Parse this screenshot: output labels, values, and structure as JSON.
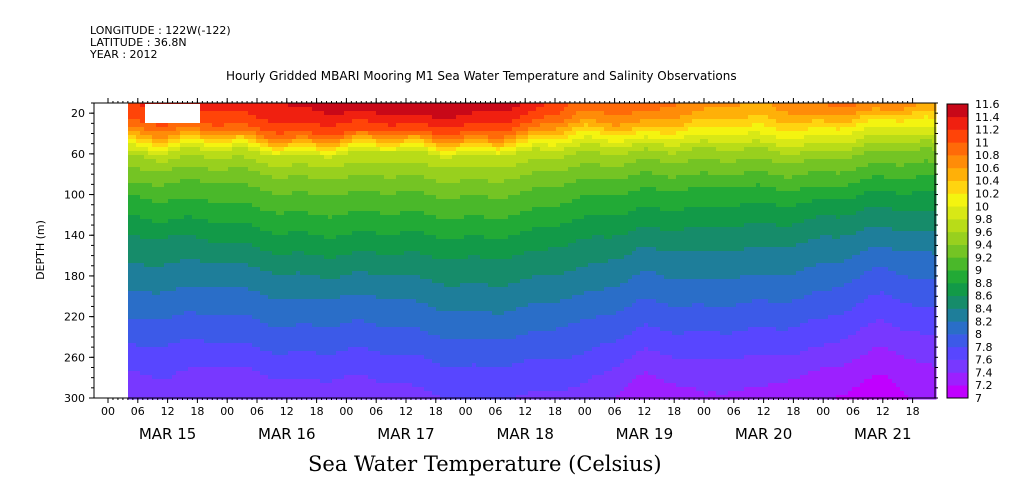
{
  "header": {
    "longitude": "LONGITUDE : 122W(-122)",
    "latitude": "LATITUDE : 36.8N",
    "year": "YEAR : 2012"
  },
  "chart_data": {
    "type": "heatmap",
    "title": "Hourly Gridded MBARI Mooring M1 Sea Water Temperature and Salinity Observations",
    "subtitle": "Sea Water Temperature (Celsius)",
    "ylabel": "DEPTH (m)",
    "ylim": [
      300,
      10
    ],
    "y_ticks": [
      20,
      60,
      100,
      140,
      180,
      220,
      260,
      300
    ],
    "hour_ticks": [
      "00",
      "06",
      "12",
      "18",
      "00",
      "06",
      "12",
      "18",
      "00",
      "06",
      "12",
      "18",
      "00",
      "06",
      "12",
      "18",
      "00",
      "06",
      "12",
      "18",
      "00",
      "06",
      "12",
      "18",
      "00",
      "06",
      "12",
      "18"
    ],
    "x_dates": [
      "MAR 15",
      "MAR 16",
      "MAR 17",
      "MAR 18",
      "MAR 19",
      "MAR 20",
      "MAR 21"
    ],
    "colorbar": {
      "levels": [
        7,
        7.2,
        7.4,
        7.6,
        7.8,
        8,
        8.2,
        8.4,
        8.6,
        8.8,
        9,
        9.2,
        9.4,
        9.6,
        9.8,
        10,
        10.2,
        10.4,
        10.6,
        10.8,
        11,
        11.2,
        11.4,
        11.6
      ],
      "colors": [
        "#c000ff",
        "#9c20ff",
        "#7838ff",
        "#5846ff",
        "#3c5ae8",
        "#2a6ec8",
        "#1e7e9a",
        "#168c6a",
        "#129a48",
        "#22aa36",
        "#4ab82a",
        "#74c424",
        "#98d01e",
        "#b8dc18",
        "#d8e816",
        "#f4f410",
        "#ffd410",
        "#ffb008",
        "#ff8c08",
        "#ff6a08",
        "#ff4408",
        "#f02010",
        "#c80818",
        "#980010"
      ]
    },
    "profile_depths": [
      10,
      20,
      30,
      40,
      50,
      60,
      80,
      100,
      120,
      140,
      160,
      180,
      200,
      220,
      240,
      260,
      280,
      300
    ],
    "profiles": [
      {
        "date": "MAR 15 06",
        "temps": [
          11.2,
          11.1,
          10.9,
          10.5,
          10.0,
          9.6,
          9.3,
          9.0,
          8.8,
          8.6,
          8.45,
          8.3,
          8.15,
          8.0,
          7.85,
          7.7,
          7.55,
          7.45
        ]
      },
      {
        "date": "MAR 15 12",
        "temps": [
          11.3,
          11.2,
          11.0,
          10.7,
          10.2,
          9.7,
          9.3,
          9.05,
          8.85,
          8.6,
          8.45,
          8.3,
          8.15,
          8.0,
          7.85,
          7.7,
          7.6,
          7.5
        ]
      },
      {
        "date": "MAR 16 00",
        "temps": [
          11.3,
          11.2,
          11.1,
          10.8,
          10.2,
          9.7,
          9.35,
          9.1,
          8.9,
          8.7,
          8.5,
          8.3,
          8.15,
          8.0,
          7.85,
          7.7,
          7.5,
          7.4
        ]
      },
      {
        "date": "MAR 16 12",
        "temps": [
          11.4,
          11.3,
          11.15,
          10.9,
          10.3,
          9.75,
          9.4,
          9.15,
          8.95,
          8.75,
          8.55,
          8.35,
          8.2,
          8.05,
          7.9,
          7.75,
          7.6,
          7.5
        ]
      },
      {
        "date": "MAR 17 00",
        "temps": [
          11.5,
          11.4,
          11.2,
          11.0,
          10.4,
          9.8,
          9.45,
          9.2,
          9.0,
          8.8,
          8.6,
          8.4,
          8.2,
          8.05,
          7.9,
          7.75,
          7.6,
          7.5
        ]
      },
      {
        "date": "MAR 17 12",
        "temps": [
          11.65,
          11.5,
          11.3,
          11.0,
          10.4,
          9.8,
          9.45,
          9.2,
          9.0,
          8.8,
          8.6,
          8.42,
          8.25,
          8.1,
          7.95,
          7.8,
          7.65,
          7.55
        ]
      },
      {
        "date": "MAR 18 00",
        "temps": [
          11.5,
          11.4,
          11.2,
          10.9,
          10.3,
          9.75,
          9.45,
          9.2,
          9.0,
          8.8,
          8.6,
          8.45,
          8.3,
          8.15,
          8.0,
          7.85,
          7.7,
          7.6
        ]
      },
      {
        "date": "MAR 18 12",
        "temps": [
          11.45,
          11.3,
          11.1,
          10.8,
          10.3,
          9.8,
          9.45,
          9.2,
          9.0,
          8.8,
          8.6,
          8.45,
          8.3,
          8.15,
          8.0,
          7.85,
          7.7,
          7.6
        ]
      },
      {
        "date": "MAR 19 00",
        "temps": [
          10.9,
          10.8,
          10.6,
          10.2,
          9.9,
          9.6,
          9.3,
          9.05,
          8.85,
          8.65,
          8.5,
          8.35,
          8.2,
          8.05,
          7.9,
          7.8,
          7.65,
          7.55
        ]
      },
      {
        "date": "MAR 19 12",
        "temps": [
          10.9,
          10.75,
          10.5,
          10.1,
          9.7,
          9.45,
          9.15,
          8.9,
          8.7,
          8.5,
          8.3,
          8.15,
          8.0,
          7.85,
          7.7,
          7.5,
          7.35,
          7.2
        ]
      },
      {
        "date": "MAR 20 00",
        "temps": [
          10.7,
          10.6,
          10.4,
          10.1,
          9.85,
          9.55,
          9.25,
          8.95,
          8.75,
          8.55,
          8.4,
          8.25,
          8.1,
          7.95,
          7.8,
          7.65,
          7.5,
          7.4
        ]
      },
      {
        "date": "MAR 20 12",
        "temps": [
          10.6,
          10.5,
          10.3,
          10.05,
          9.8,
          9.5,
          9.2,
          8.9,
          8.7,
          8.5,
          8.35,
          8.2,
          8.05,
          7.9,
          7.75,
          7.6,
          7.45,
          7.35
        ]
      },
      {
        "date": "MAR 21 00",
        "temps": [
          10.8,
          10.6,
          10.3,
          10.0,
          9.75,
          9.45,
          9.15,
          8.85,
          8.6,
          8.4,
          8.25,
          8.1,
          7.95,
          7.8,
          7.65,
          7.5,
          7.3,
          7.2
        ]
      },
      {
        "date": "MAR 21 12",
        "temps": [
          10.9,
          10.6,
          10.2,
          9.9,
          9.7,
          9.4,
          9.1,
          8.8,
          8.55,
          8.35,
          8.15,
          7.95,
          7.8,
          7.65,
          7.5,
          7.35,
          7.2,
          7.1
        ]
      },
      {
        "date": "MAR 21 20",
        "temps": [
          10.7,
          10.4,
          10.1,
          9.9,
          9.6,
          9.35,
          9.05,
          8.8,
          8.6,
          8.4,
          8.2,
          8.05,
          7.9,
          7.75,
          7.6,
          7.45,
          7.35,
          7.25
        ]
      }
    ],
    "grid": false
  }
}
